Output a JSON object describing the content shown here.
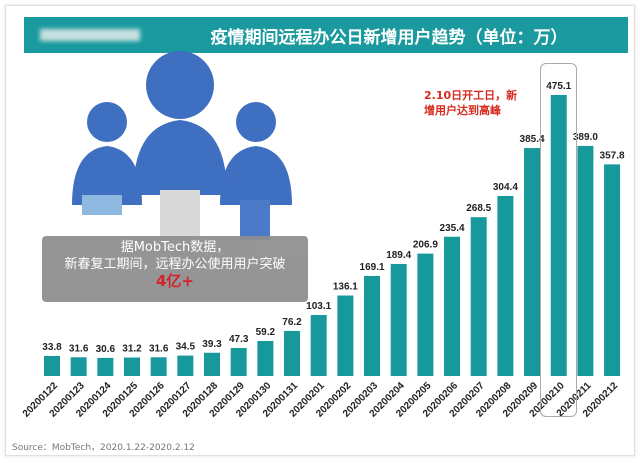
{
  "header": {
    "title": "疫情期间远程办公日新增用户趋势（单位：万）"
  },
  "callout": {
    "line1": "据MobTech数据，",
    "line2": "新春复工期间，远程办公使用用户突破",
    "highlight": "4亿+"
  },
  "annotation": "2.10日开工日，新增用户达到高峰",
  "source": "Source：MobTech，2020.1.22-2020.2.12",
  "colors": {
    "bar": "#17999b",
    "header": "#1a9a9e",
    "annotation": "#d62b20",
    "figures": "#3f6fc0"
  },
  "chart_data": {
    "type": "bar",
    "title": "疫情期间远程办公日新增用户趋势（单位：万）",
    "categories": [
      "20200122",
      "20200123",
      "20200124",
      "20200125",
      "20200126",
      "20200127",
      "20200128",
      "20200129",
      "20200130",
      "20200131",
      "20200201",
      "20200202",
      "20200203",
      "20200204",
      "20200205",
      "20200206",
      "20200207",
      "20200208",
      "20200209",
      "20200210",
      "20200211",
      "20200212"
    ],
    "values": [
      33.8,
      31.6,
      30.6,
      31.2,
      31.6,
      34.5,
      39.3,
      47.3,
      59.2,
      76.2,
      103.1,
      136.1,
      169.1,
      189.4,
      206.9,
      235.4,
      268.5,
      304.4,
      385.4,
      475.1,
      389.0,
      357.8
    ],
    "value_labels": [
      "33.8",
      "31.6",
      "30.6",
      "31.2",
      "31.6",
      "34.5",
      "39.3",
      "47.3",
      "59.2",
      "76.2",
      "103.1",
      "136.1",
      "169.1",
      "189.4",
      "206.9",
      "235.4",
      "268.5",
      "304.4",
      "385.4",
      "475.1",
      "389.0",
      "357.8"
    ],
    "highlighted_category": "20200210",
    "ylim": [
      0,
      480
    ],
    "grid": false,
    "legend": "none"
  }
}
